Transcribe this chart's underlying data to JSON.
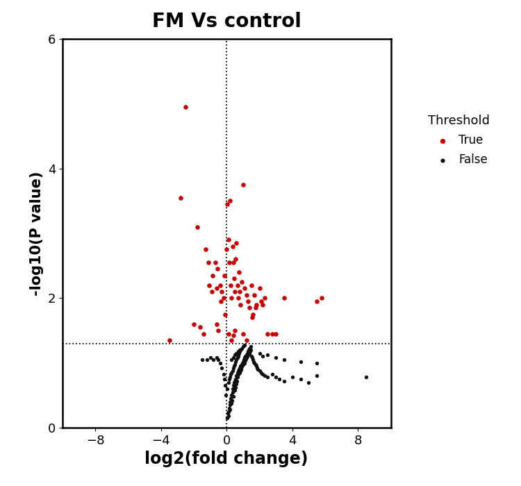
{
  "title": "FM Vs control",
  "xlabel": "log2(fold change)",
  "ylabel": "-log10(P value)",
  "xlim": [
    -10,
    10
  ],
  "ylim": [
    0,
    6
  ],
  "xticks": [
    -8,
    -4,
    0,
    4,
    8
  ],
  "yticks": [
    0,
    2,
    4,
    6
  ],
  "hline": 1.3,
  "vline": 0,
  "threshold_color_true": "#cc0000",
  "threshold_color_false": "#111111",
  "legend_title": "Threshold",
  "legend_true": "True",
  "legend_false": "False",
  "true_points": [
    [
      -2.5,
      4.95
    ],
    [
      -2.8,
      3.55
    ],
    [
      -1.8,
      3.1
    ],
    [
      -1.3,
      2.75
    ],
    [
      -1.1,
      2.55
    ],
    [
      -1.05,
      2.2
    ],
    [
      -0.9,
      2.1
    ],
    [
      -0.85,
      2.35
    ],
    [
      -0.7,
      2.55
    ],
    [
      -0.6,
      2.15
    ],
    [
      -0.55,
      2.45
    ],
    [
      -0.4,
      2.2
    ],
    [
      -0.35,
      1.95
    ],
    [
      -0.3,
      2.1
    ],
    [
      -0.2,
      2.0
    ],
    [
      -0.15,
      2.35
    ],
    [
      -0.1,
      1.75
    ],
    [
      0.0,
      2.75
    ],
    [
      0.05,
      3.45
    ],
    [
      0.1,
      2.9
    ],
    [
      0.15,
      2.55
    ],
    [
      0.2,
      3.5
    ],
    [
      0.25,
      2.2
    ],
    [
      0.3,
      2.0
    ],
    [
      0.35,
      2.8
    ],
    [
      0.4,
      2.55
    ],
    [
      0.45,
      2.3
    ],
    [
      0.5,
      2.1
    ],
    [
      0.55,
      2.6
    ],
    [
      0.6,
      2.85
    ],
    [
      0.65,
      2.2
    ],
    [
      0.7,
      2.0
    ],
    [
      0.75,
      2.4
    ],
    [
      0.8,
      2.1
    ],
    [
      0.85,
      1.9
    ],
    [
      0.9,
      2.25
    ],
    [
      1.0,
      3.75
    ],
    [
      1.1,
      2.15
    ],
    [
      1.2,
      2.05
    ],
    [
      1.3,
      1.95
    ],
    [
      1.4,
      1.85
    ],
    [
      1.5,
      2.2
    ],
    [
      1.55,
      1.7
    ],
    [
      1.6,
      1.75
    ],
    [
      1.7,
      2.05
    ],
    [
      1.75,
      1.85
    ],
    [
      1.8,
      1.9
    ],
    [
      2.0,
      2.15
    ],
    [
      2.1,
      1.95
    ],
    [
      2.2,
      1.9
    ],
    [
      2.3,
      2.0
    ],
    [
      2.5,
      1.45
    ],
    [
      2.8,
      1.45
    ],
    [
      3.0,
      1.45
    ],
    [
      3.5,
      2.0
    ],
    [
      5.5,
      1.95
    ],
    [
      5.8,
      2.0
    ],
    [
      -3.5,
      1.35
    ],
    [
      -2.0,
      1.6
    ],
    [
      -1.6,
      1.55
    ],
    [
      -1.4,
      1.45
    ],
    [
      -0.5,
      1.5
    ],
    [
      -0.6,
      1.6
    ],
    [
      0.1,
      1.45
    ],
    [
      0.3,
      1.35
    ],
    [
      0.4,
      1.42
    ],
    [
      0.5,
      1.5
    ],
    [
      1.0,
      1.45
    ],
    [
      1.2,
      1.35
    ]
  ],
  "false_points": [
    [
      0.05,
      0.15
    ],
    [
      0.1,
      0.18
    ],
    [
      0.08,
      0.22
    ],
    [
      0.12,
      0.25
    ],
    [
      0.15,
      0.3
    ],
    [
      0.18,
      0.35
    ],
    [
      0.2,
      0.28
    ],
    [
      0.22,
      0.4
    ],
    [
      0.25,
      0.45
    ],
    [
      0.28,
      0.38
    ],
    [
      0.3,
      0.5
    ],
    [
      0.32,
      0.42
    ],
    [
      0.35,
      0.55
    ],
    [
      0.38,
      0.6
    ],
    [
      0.4,
      0.48
    ],
    [
      0.42,
      0.65
    ],
    [
      0.45,
      0.7
    ],
    [
      0.48,
      0.58
    ],
    [
      0.5,
      0.72
    ],
    [
      0.52,
      0.62
    ],
    [
      0.55,
      0.75
    ],
    [
      0.58,
      0.68
    ],
    [
      0.6,
      0.8
    ],
    [
      0.62,
      0.72
    ],
    [
      0.65,
      0.85
    ],
    [
      0.68,
      0.78
    ],
    [
      0.7,
      0.88
    ],
    [
      0.72,
      0.82
    ],
    [
      0.75,
      0.9
    ],
    [
      0.78,
      0.85
    ],
    [
      0.8,
      0.92
    ],
    [
      0.82,
      0.88
    ],
    [
      0.85,
      0.95
    ],
    [
      0.88,
      0.9
    ],
    [
      0.9,
      0.98
    ],
    [
      0.92,
      0.94
    ],
    [
      0.95,
      1.0
    ],
    [
      0.98,
      0.96
    ],
    [
      1.0,
      1.02
    ],
    [
      1.02,
      0.98
    ],
    [
      1.05,
      1.05
    ],
    [
      1.08,
      1.0
    ],
    [
      1.1,
      1.08
    ],
    [
      1.12,
      1.04
    ],
    [
      1.15,
      1.1
    ],
    [
      1.18,
      1.06
    ],
    [
      1.2,
      1.12
    ],
    [
      1.22,
      1.08
    ],
    [
      1.25,
      1.15
    ],
    [
      1.28,
      1.1
    ],
    [
      1.3,
      1.18
    ],
    [
      1.32,
      1.12
    ],
    [
      1.35,
      1.2
    ],
    [
      1.38,
      1.15
    ],
    [
      1.4,
      1.22
    ],
    [
      1.42,
      1.18
    ],
    [
      1.45,
      1.25
    ],
    [
      1.48,
      1.2
    ],
    [
      1.5,
      1.1
    ],
    [
      1.55,
      1.08
    ],
    [
      1.6,
      1.05
    ],
    [
      1.65,
      1.02
    ],
    [
      1.7,
      1.0
    ],
    [
      1.75,
      0.98
    ],
    [
      1.8,
      0.95
    ],
    [
      1.85,
      0.92
    ],
    [
      1.9,
      0.9
    ],
    [
      2.0,
      0.88
    ],
    [
      2.1,
      0.85
    ],
    [
      2.2,
      0.82
    ],
    [
      2.3,
      0.8
    ],
    [
      2.5,
      0.78
    ],
    [
      2.8,
      0.82
    ],
    [
      3.0,
      0.78
    ],
    [
      3.2,
      0.75
    ],
    [
      3.5,
      0.72
    ],
    [
      4.0,
      0.78
    ],
    [
      4.5,
      0.75
    ],
    [
      5.0,
      0.7
    ],
    [
      5.5,
      0.8
    ],
    [
      8.5,
      0.78
    ],
    [
      -0.05,
      0.5
    ],
    [
      -0.1,
      0.65
    ],
    [
      -0.15,
      0.75
    ],
    [
      -0.2,
      0.82
    ],
    [
      -0.3,
      0.92
    ],
    [
      -0.4,
      1.0
    ],
    [
      -0.5,
      1.05
    ],
    [
      -0.6,
      1.08
    ],
    [
      -0.8,
      1.05
    ],
    [
      -1.0,
      1.08
    ],
    [
      -1.2,
      1.05
    ],
    [
      0.05,
      0.6
    ],
    [
      0.1,
      0.7
    ],
    [
      0.15,
      0.75
    ],
    [
      0.2,
      0.78
    ],
    [
      0.25,
      0.82
    ],
    [
      0.3,
      0.85
    ],
    [
      0.35,
      0.88
    ],
    [
      0.4,
      0.92
    ],
    [
      0.45,
      0.95
    ],
    [
      0.5,
      0.98
    ],
    [
      0.55,
      1.02
    ],
    [
      0.6,
      1.05
    ],
    [
      0.65,
      1.08
    ],
    [
      0.7,
      1.1
    ],
    [
      0.75,
      1.15
    ],
    [
      0.8,
      1.18
    ],
    [
      0.85,
      1.2
    ],
    [
      0.9,
      1.22
    ],
    [
      1.0,
      1.25
    ],
    [
      1.1,
      1.28
    ],
    [
      0.3,
      1.05
    ],
    [
      0.4,
      1.08
    ],
    [
      0.5,
      1.12
    ],
    [
      0.6,
      1.15
    ],
    [
      0.7,
      1.18
    ],
    [
      0.8,
      1.2
    ],
    [
      2.5,
      1.12
    ],
    [
      3.0,
      1.08
    ],
    [
      3.5,
      1.05
    ],
    [
      4.5,
      1.02
    ],
    [
      5.5,
      1.0
    ],
    [
      -1.5,
      1.05
    ],
    [
      2.0,
      1.15
    ],
    [
      2.2,
      1.1
    ]
  ]
}
